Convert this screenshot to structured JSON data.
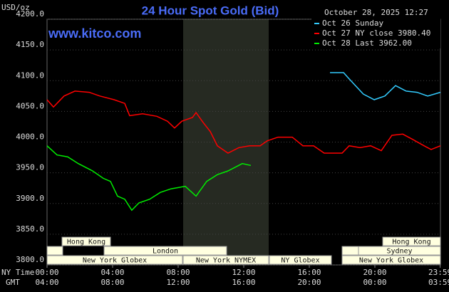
{
  "chart_data": {
    "type": "line",
    "title": "24 Hour Spot Gold (Bid)",
    "timestamp": "October 28, 2025 12:27",
    "watermark": "www.kitco.com",
    "y_label": "USD/oz",
    "x_label": "NY Time",
    "x2_label": "GMT",
    "xlim": [
      0,
      24
    ],
    "xticks": [
      {
        "value": 0,
        "label": "00:00"
      },
      {
        "value": 4,
        "label": "04:00"
      },
      {
        "value": 8,
        "label": "08:00"
      },
      {
        "value": 12,
        "label": "12:00"
      },
      {
        "value": 16,
        "label": "16:00"
      },
      {
        "value": 20,
        "label": "20:00"
      },
      {
        "value": 23.98,
        "label": "23:59"
      }
    ],
    "x2ticks": [
      "04:00",
      "08:00",
      "12:00",
      "16:00",
      "20:00",
      "00:00",
      "03:59"
    ],
    "ylim": [
      3800,
      4200
    ],
    "yticks": [
      {
        "value": 3800,
        "label": "3800.0"
      },
      {
        "value": 3850,
        "label": "3850.0"
      },
      {
        "value": 3900,
        "label": "3900.0"
      },
      {
        "value": 3950,
        "label": "3950.0"
      },
      {
        "value": 4000,
        "label": "4000.0"
      },
      {
        "value": 4050,
        "label": "4050.0"
      },
      {
        "value": 4100,
        "label": "4100.0"
      },
      {
        "value": 4150,
        "label": "4150.0"
      },
      {
        "value": 4200,
        "label": "4200.0"
      }
    ],
    "grid": true,
    "sessions": [
      "Hong Kong",
      "London",
      "New York Globex",
      "New York NYMEX",
      "NY Globex",
      "Hong Kong",
      "Sydney",
      "New York Globex"
    ],
    "series": [
      {
        "name": "Oct 26 Sunday",
        "color": "#33ccff",
        "x": [
          17.26,
          18.09,
          18.39,
          18.74,
          19.3,
          19.96,
          20.61,
          21.26,
          21.91,
          22.57,
          23.22,
          24
        ],
        "values": [
          4113,
          4113,
          4104,
          4094,
          4078,
          4069,
          4075,
          4092,
          4083,
          4081,
          4075,
          4081
        ]
      },
      {
        "name": "Oct 27 NY close 3980.40",
        "color": "#ff0000",
        "x": [
          0,
          0.39,
          1.04,
          1.7,
          2.57,
          3.22,
          4.09,
          4.74,
          5.04,
          5.83,
          6.7,
          7.35,
          7.78,
          8.22,
          8.87,
          9.09,
          9.52,
          9.96,
          10.39,
          11.04,
          11.7,
          12.35,
          13,
          13.43,
          14.09,
          14.96,
          15.61,
          16.26,
          16.91,
          18,
          18.43,
          19.09,
          19.74,
          20.39,
          21.04,
          21.7,
          22.26,
          23,
          23.43,
          24
        ],
        "values": [
          4069,
          4057,
          4075,
          4083,
          4081,
          4075,
          4069,
          4063,
          4043,
          4046,
          4042,
          4034,
          4023,
          4034,
          4040,
          4048,
          4032,
          4017,
          3994,
          3982,
          3991,
          3994,
          3994,
          4002,
          4008,
          4008,
          3994,
          3994,
          3982,
          3982,
          3994,
          3991,
          3994,
          3986,
          4011,
          4013,
          4005,
          3994,
          3988,
          3994
        ]
      },
      {
        "name": "Oct 28 Last 3962.00",
        "color": "#00ee00",
        "x": [
          0,
          0.61,
          1.26,
          1.91,
          2.78,
          3.43,
          3.87,
          4.3,
          4.74,
          5.17,
          5.61,
          6.26,
          6.91,
          7.57,
          8.43,
          9.09,
          9.74,
          10.39,
          11.04,
          11.91,
          12.43
        ],
        "values": [
          3994,
          3979,
          3976,
          3965,
          3953,
          3941,
          3936,
          3912,
          3907,
          3889,
          3901,
          3907,
          3918,
          3924,
          3928,
          3912,
          3936,
          3947,
          3953,
          3965,
          3962
        ]
      }
    ]
  }
}
